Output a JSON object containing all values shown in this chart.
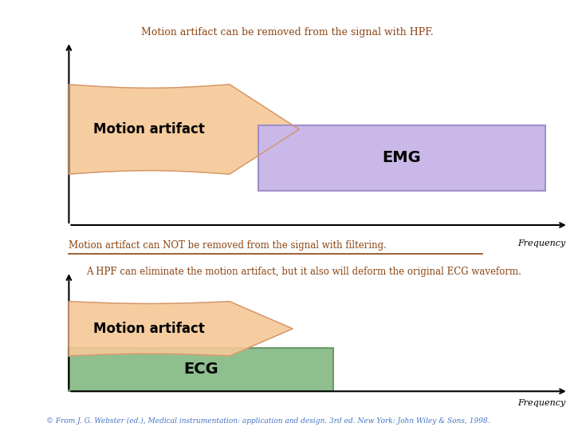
{
  "bg_color": "#ffffff",
  "title_color": "#8B4513",
  "text1": "Motion artifact can be removed from the signal with HPF.",
  "text2_strike": "Motion artifact can NOT be removed from the signal with filtering.",
  "text3": "A HPF can eliminate the motion artifact, but it also will deform the original ECG waveform.",
  "footer": "© From J. G. Webster (ed.), Medical instrumentation: application and design. 3rd ed. New York: John Wiley & Sons, 1998.",
  "motion_artifact_label": "Motion artifact",
  "emg_label": "EMG",
  "ecg_label": "ECG",
  "frequency_label": "Frequency",
  "orange_fill": "#F5C897",
  "orange_edge": "#D4956A",
  "purple_fill": "#C9B8E8",
  "purple_edge": "#A090C8",
  "green_fill": "#8FBF8F",
  "green_edge": "#6A9A6A",
  "strike_color": "#8B4513",
  "footer_color": "#4472C4"
}
